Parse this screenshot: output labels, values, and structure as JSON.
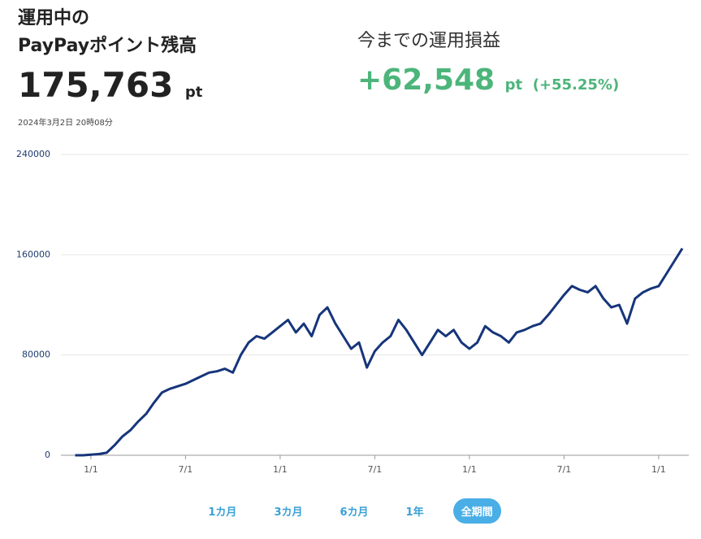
{
  "header": {
    "title_line1": "運用中の",
    "title_line2": "PayPayポイント残高",
    "balance": "175,763",
    "balance_unit": "pt",
    "timestamp": "2024年3月2日 20時08分",
    "profit_label": "今までの運用損益",
    "profit": "+62,548",
    "profit_unit": "pt",
    "profit_rate": "(+55.25%)"
  },
  "chart_data": {
    "type": "line",
    "color": "#16357a",
    "grid": true,
    "categories": [
      null,
      null,
      "1/1",
      null,
      null,
      null,
      null,
      null,
      null,
      null,
      null,
      null,
      null,
      null,
      "7/1",
      null,
      null,
      null,
      null,
      null,
      null,
      null,
      null,
      null,
      null,
      null,
      "1/1",
      null,
      null,
      null,
      null,
      null,
      null,
      null,
      null,
      null,
      null,
      null,
      "7/1",
      null,
      null,
      null,
      null,
      null,
      null,
      null,
      null,
      null,
      null,
      null,
      "1/1",
      null,
      null,
      null,
      null,
      null,
      null,
      null,
      null,
      null,
      null,
      null,
      "7/1",
      null,
      null,
      null,
      null,
      null,
      null,
      null,
      null,
      null,
      null,
      null,
      "1/1",
      null,
      null,
      null
    ],
    "values": [
      0,
      0,
      500,
      1000,
      2000,
      8000,
      15000,
      20000,
      27000,
      33000,
      42000,
      50000,
      53000,
      55000,
      57000,
      60000,
      63000,
      66000,
      67000,
      69000,
      66000,
      80000,
      90000,
      95000,
      93000,
      98000,
      103000,
      108000,
      98000,
      105000,
      95000,
      112000,
      118000,
      105000,
      95000,
      85000,
      90000,
      70000,
      83000,
      90000,
      95000,
      108000,
      100000,
      90000,
      80000,
      90000,
      100000,
      95000,
      100000,
      90000,
      85000,
      90000,
      103000,
      98000,
      95000,
      90000,
      98000,
      100000,
      103000,
      105000,
      112000,
      120000,
      128000,
      135000,
      132000,
      130000,
      135000,
      125000,
      118000,
      120000,
      105000,
      125000,
      130000,
      133000,
      135000,
      145000,
      155000,
      165000
    ],
    "ylim": [
      0,
      240000
    ],
    "yticks": [
      0,
      80000,
      160000,
      240000
    ]
  },
  "tabs": [
    "1カ月",
    "3カ月",
    "6カ月",
    "1年",
    "全期間"
  ],
  "selected_tab": 4
}
